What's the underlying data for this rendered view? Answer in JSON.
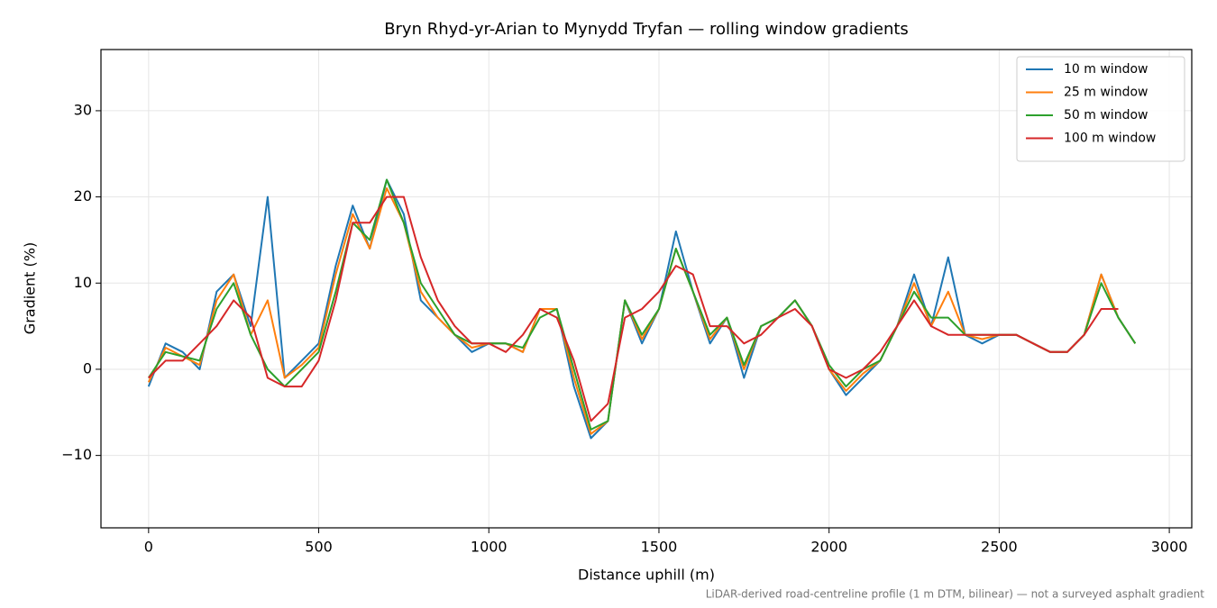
{
  "chart_data": {
    "type": "line",
    "title": "Bryn Rhyd-yr-Arian to Mynydd Tryfan — rolling window gradients",
    "x_label": "Distance uphill (m)",
    "y_label": "Gradient (%)",
    "note": "LiDAR-derived road-centreline profile (1 m DTM, bilinear) — not a surveyed asphalt gradient",
    "x": [
      0,
      50,
      100,
      150,
      200,
      250,
      300,
      350,
      400,
      450,
      500,
      550,
      600,
      650,
      700,
      750,
      800,
      850,
      900,
      950,
      1000,
      1050,
      1100,
      1150,
      1200,
      1250,
      1300,
      1350,
      1400,
      1450,
      1500,
      1550,
      1600,
      1650,
      1700,
      1750,
      1800,
      1850,
      1900,
      1950,
      2000,
      2050,
      2100,
      2150,
      2200,
      2250,
      2300,
      2350,
      2400,
      2450,
      2500,
      2550,
      2600,
      2650,
      2700,
      2750,
      2800,
      2850,
      2900
    ],
    "series": [
      {
        "name": "10 m window",
        "color": "#1f77b4",
        "values": [
          -2,
          3,
          2,
          0,
          9,
          11,
          5,
          20,
          -1,
          1,
          3,
          12,
          19,
          14,
          22,
          18,
          8,
          6,
          4,
          2,
          3,
          3,
          2,
          7,
          7,
          -2,
          -8,
          -6,
          8,
          3,
          7,
          16,
          9,
          3,
          6,
          -1,
          5,
          6,
          8,
          5,
          0,
          -3,
          -1,
          1,
          5,
          11,
          5,
          13,
          4,
          3,
          4,
          4,
          3,
          2,
          2,
          4,
          11,
          6,
          3
        ]
      },
      {
        "name": "25 m window",
        "color": "#ff7f0e",
        "values": [
          -1.5,
          2.5,
          1.5,
          0.5,
          8,
          11,
          4,
          8,
          -1,
          0.5,
          2.5,
          11,
          18,
          14,
          21,
          17,
          9,
          6,
          4,
          2.5,
          3,
          3,
          2,
          7,
          7,
          -1,
          -7.5,
          -6,
          8,
          3.5,
          7,
          14,
          9,
          3.5,
          6,
          0,
          5,
          6,
          8,
          5,
          0,
          -2.5,
          -0.5,
          1,
          5,
          10,
          5,
          9,
          4,
          3.5,
          4,
          4,
          3,
          2,
          2,
          4,
          11,
          6,
          3
        ]
      },
      {
        "name": "50 m window",
        "color": "#2ca02c",
        "values": [
          -1,
          2,
          1.5,
          1,
          7,
          10,
          4,
          0,
          -2,
          0,
          2,
          9,
          17,
          15,
          22,
          17,
          10,
          7,
          4,
          3,
          3,
          3,
          2.5,
          6,
          7,
          0,
          -7,
          -6,
          8,
          4,
          7,
          14,
          9,
          4,
          6,
          0.5,
          5,
          6,
          8,
          5,
          0.5,
          -2,
          0,
          1,
          5,
          9,
          6,
          6,
          4,
          4,
          4,
          4,
          3,
          2,
          2,
          4,
          10,
          6,
          3
        ]
      },
      {
        "name": "100 m window",
        "color": "#d62728",
        "values": [
          -1,
          1,
          1,
          3,
          5,
          8,
          6,
          -1,
          -2,
          -2,
          1,
          8,
          17,
          17,
          20,
          20,
          13,
          8,
          5,
          3,
          3,
          2,
          4,
          7,
          6,
          1,
          -6,
          -4,
          6,
          7,
          9,
          12,
          11,
          5,
          5,
          3,
          4,
          6,
          7,
          5,
          0,
          -1,
          0,
          2,
          5,
          8,
          5,
          4,
          4,
          4,
          4,
          4,
          3,
          2,
          2,
          4,
          7,
          7,
          null
        ]
      }
    ],
    "xlim": [
      -140,
      3066
    ],
    "ylim": [
      -18.4,
      37.1
    ],
    "xticks": [
      0,
      500,
      1000,
      1500,
      2000,
      2500,
      3000
    ],
    "yticks": [
      {
        "value": -10,
        "label": "−10"
      },
      0,
      10,
      20,
      30
    ],
    "grid": true,
    "legend": "upper right"
  }
}
